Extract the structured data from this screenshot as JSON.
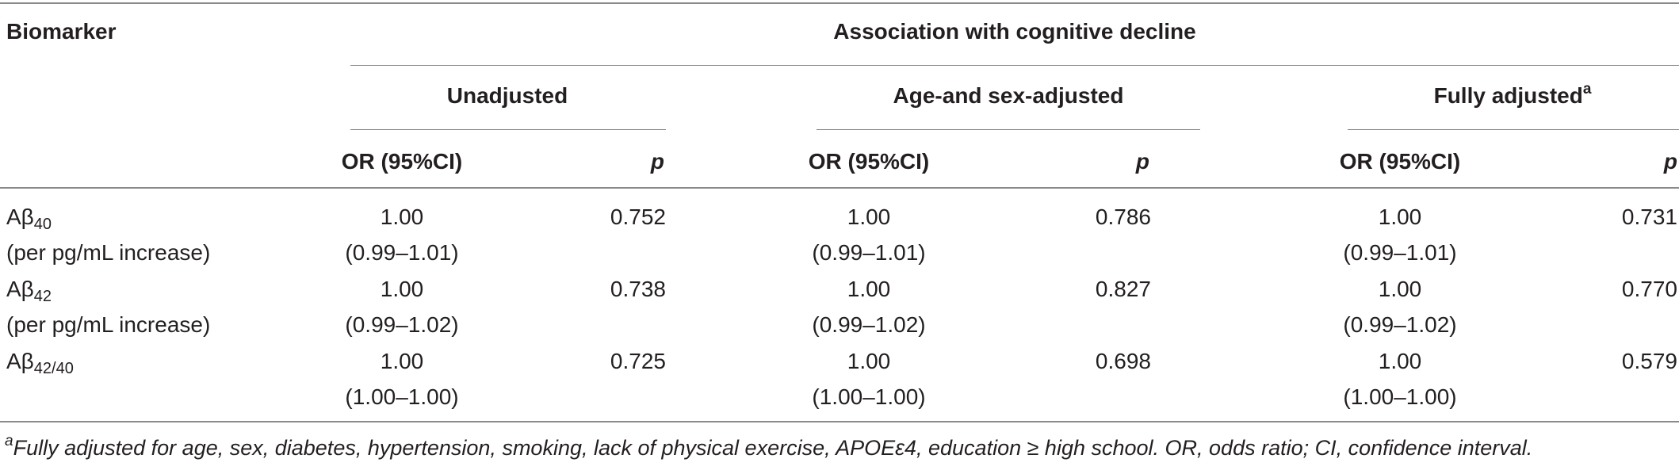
{
  "table": {
    "header": {
      "biomarker": "Biomarker",
      "association": "Association with cognitive decline",
      "groups": [
        {
          "label": "Unadjusted",
          "sup": ""
        },
        {
          "label": "Age-and sex-adjusted",
          "sup": ""
        },
        {
          "label": "Fully adjusted",
          "sup": "a"
        }
      ],
      "or_label": "OR (95%CI)",
      "p_label": "p"
    },
    "rows": [
      {
        "name": "Aβ",
        "sub": "40",
        "unit": "(per pg/mL increase)",
        "cells": [
          {
            "or": "1.00",
            "ci": "(0.99–1.01)",
            "p": "0.752"
          },
          {
            "or": "1.00",
            "ci": "(0.99–1.01)",
            "p": "0.786"
          },
          {
            "or": "1.00",
            "ci": "(0.99–1.01)",
            "p": "0.731"
          }
        ]
      },
      {
        "name": "Aβ",
        "sub": "42",
        "unit": "(per pg/mL increase)",
        "cells": [
          {
            "or": "1.00",
            "ci": "(0.99–1.02)",
            "p": "0.738"
          },
          {
            "or": "1.00",
            "ci": "(0.99–1.02)",
            "p": "0.827"
          },
          {
            "or": "1.00",
            "ci": "(0.99–1.02)",
            "p": "0.770"
          }
        ]
      },
      {
        "name": "Aβ",
        "sub": "42/40",
        "unit": "",
        "cells": [
          {
            "or": "1.00",
            "ci": "(1.00–1.00)",
            "p": "0.725"
          },
          {
            "or": "1.00",
            "ci": "(1.00–1.00)",
            "p": "0.698"
          },
          {
            "or": "1.00",
            "ci": "(1.00–1.00)",
            "p": "0.579"
          }
        ]
      }
    ],
    "footnote": {
      "marker": "a",
      "text": "Fully adjusted for age, sex, diabetes, hypertension, smoking, lack of physical exercise, APOEε4, education ≥ high school. OR, odds ratio; CI, confidence interval."
    }
  }
}
